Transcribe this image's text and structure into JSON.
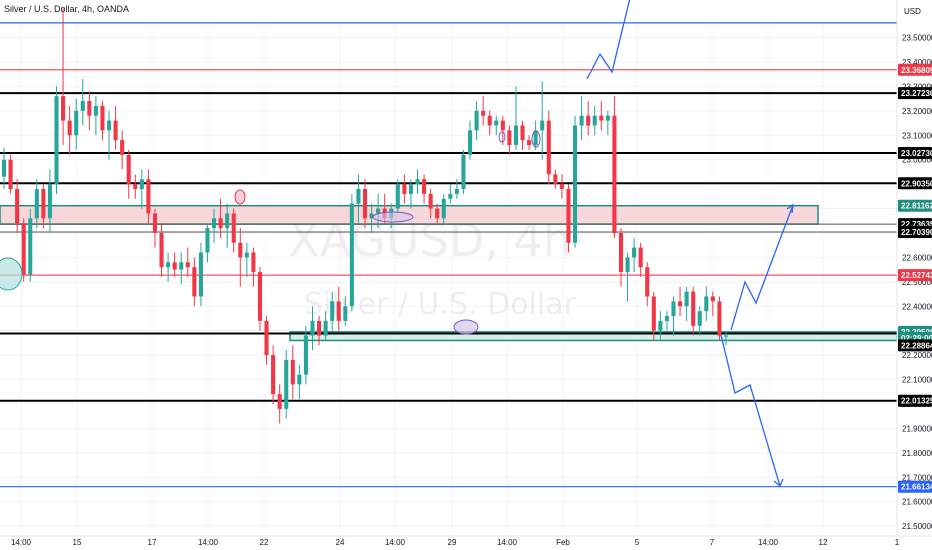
{
  "header": {
    "title": "Silver / U.S. Dollar, 4h, OANDA",
    "currency": "USD"
  },
  "watermark": {
    "symbol": "XAGUSD, 4h",
    "name": "Silver / U.S. Dollar"
  },
  "colors": {
    "up": "#26a69a",
    "down": "#f23645",
    "black": "#000000",
    "blue": "#2962ff",
    "red_line": "#f7525f",
    "zone_fill": "#f8d7da",
    "zone_border": "#1e8e7e",
    "support_fill": "#d6efe9",
    "grid": "#f0f3fa"
  },
  "chart_data": {
    "type": "candlestick",
    "title": "Silver / U.S. Dollar, 4h, OANDA",
    "ylim": [
      21.48,
      23.58
    ],
    "y_ticks": [
      "23.50000",
      "23.40000",
      "23.30000",
      "23.20000",
      "23.10000",
      "23.00000",
      "22.90000",
      "22.80000",
      "22.70000",
      "22.60000",
      "22.50000",
      "22.40000",
      "22.30000",
      "22.20000",
      "22.10000",
      "22.00000",
      "21.90000",
      "21.80000",
      "21.70000",
      "21.60000",
      "21.50000"
    ],
    "x_ticks": [
      "14:00",
      "15",
      "17",
      "14:00",
      "22",
      "24",
      "14:00",
      "29",
      "14:00",
      "Feb",
      "5",
      "7",
      "14:00",
      "12",
      "1"
    ],
    "levels": [
      {
        "value": 23.56,
        "kind": "blue"
      },
      {
        "value": 23.36809,
        "kind": "red"
      },
      {
        "value": 23.27236,
        "kind": "black"
      },
      {
        "value": 23.0273,
        "kind": "black"
      },
      {
        "value": 22.9035,
        "kind": "black"
      },
      {
        "value": 22.73635,
        "kind": "thin"
      },
      {
        "value": 22.7039,
        "kind": "thin"
      },
      {
        "value": 22.52743,
        "kind": "red"
      },
      {
        "value": 22.28864,
        "kind": "black"
      },
      {
        "value": 22.01325,
        "kind": "black"
      },
      {
        "value": 21.66134,
        "kind": "blue"
      }
    ],
    "zones": [
      {
        "from": 22.73635,
        "to": 22.81162,
        "kind": "resistance"
      },
      {
        "from": 22.26,
        "to": 22.295,
        "kind": "support"
      }
    ],
    "price_tags": [
      {
        "label": "23.36809",
        "value": 23.36809,
        "color": "red"
      },
      {
        "label": "23.27236",
        "value": 23.27236,
        "color": "black"
      },
      {
        "label": "23.02730",
        "value": 23.0273,
        "color": "black"
      },
      {
        "label": "22.90350",
        "value": 22.9035,
        "color": "black"
      },
      {
        "label": "22.81162",
        "value": 22.81162,
        "color": "teal"
      },
      {
        "label": "22.73635",
        "value": 22.73635,
        "color": "black"
      },
      {
        "label": "22.70390",
        "value": 22.7039,
        "color": "black"
      },
      {
        "label": "22.52743",
        "value": 22.52743,
        "color": "red"
      },
      {
        "label": "22.29500",
        "value": 22.295,
        "color": "teal"
      },
      {
        "label": "02:29:00",
        "value": 22.27,
        "color": "teal"
      },
      {
        "label": "22.28864",
        "value": 22.24,
        "color": "black"
      },
      {
        "label": "22.01325",
        "value": 22.01325,
        "color": "black"
      },
      {
        "label": "21.66134",
        "value": 21.66134,
        "color": "blue"
      }
    ],
    "candles": [
      [
        22.93,
        23.05,
        22.88,
        23.0
      ],
      [
        23.0,
        23.02,
        22.86,
        22.88
      ],
      [
        22.88,
        22.92,
        22.7,
        22.74
      ],
      [
        22.74,
        22.76,
        22.5,
        22.53
      ],
      [
        22.53,
        22.8,
        22.5,
        22.76
      ],
      [
        22.76,
        22.92,
        22.72,
        22.88
      ],
      [
        22.88,
        22.9,
        22.72,
        22.76
      ],
      [
        22.76,
        22.96,
        22.7,
        22.9
      ],
      [
        22.9,
        23.3,
        22.86,
        23.26
      ],
      [
        23.26,
        23.62,
        23.06,
        23.16
      ],
      [
        23.16,
        23.22,
        23.02,
        23.1
      ],
      [
        23.1,
        23.25,
        23.04,
        23.2
      ],
      [
        23.2,
        23.33,
        23.14,
        23.24
      ],
      [
        23.24,
        23.28,
        23.12,
        23.18
      ],
      [
        23.18,
        23.26,
        23.1,
        23.22
      ],
      [
        23.22,
        23.24,
        23.08,
        23.12
      ],
      [
        23.12,
        23.2,
        23.0,
        23.16
      ],
      [
        23.16,
        23.22,
        23.04,
        23.08
      ],
      [
        23.08,
        23.12,
        22.96,
        23.02
      ],
      [
        23.02,
        23.04,
        22.84,
        22.9
      ],
      [
        22.9,
        22.94,
        22.84,
        22.88
      ],
      [
        22.88,
        22.96,
        22.8,
        22.92
      ],
      [
        22.92,
        22.96,
        22.74,
        22.78
      ],
      [
        22.78,
        22.8,
        22.64,
        22.7
      ],
      [
        22.7,
        22.74,
        22.52,
        22.56
      ],
      [
        22.56,
        22.62,
        22.5,
        22.58
      ],
      [
        22.58,
        22.62,
        22.52,
        22.55
      ],
      [
        22.55,
        22.62,
        22.49,
        22.58
      ],
      [
        22.58,
        22.64,
        22.52,
        22.56
      ],
      [
        22.56,
        22.6,
        22.4,
        22.44
      ],
      [
        22.44,
        22.66,
        22.4,
        22.62
      ],
      [
        22.62,
        22.74,
        22.58,
        22.72
      ],
      [
        22.72,
        22.8,
        22.66,
        22.76
      ],
      [
        22.76,
        22.84,
        22.68,
        22.72
      ],
      [
        22.72,
        22.82,
        22.64,
        22.78
      ],
      [
        22.78,
        22.8,
        22.62,
        22.66
      ],
      [
        22.66,
        22.72,
        22.48,
        22.6
      ],
      [
        22.6,
        22.66,
        22.52,
        22.62
      ],
      [
        22.62,
        22.64,
        22.48,
        22.54
      ],
      [
        22.54,
        22.56,
        22.3,
        22.34
      ],
      [
        22.34,
        22.36,
        22.16,
        22.2
      ],
      [
        22.2,
        22.24,
        22.0,
        22.04
      ],
      [
        22.04,
        22.08,
        21.92,
        21.98
      ],
      [
        21.98,
        22.22,
        21.94,
        22.18
      ],
      [
        22.18,
        22.24,
        22.02,
        22.08
      ],
      [
        22.08,
        22.16,
        22.02,
        22.12
      ],
      [
        22.12,
        22.32,
        22.08,
        22.28
      ],
      [
        22.28,
        22.4,
        22.22,
        22.34
      ],
      [
        22.34,
        22.36,
        22.24,
        22.28
      ],
      [
        22.28,
        22.38,
        22.26,
        22.34
      ],
      [
        22.34,
        22.46,
        22.3,
        22.42
      ],
      [
        22.42,
        22.48,
        22.3,
        22.34
      ],
      [
        22.34,
        22.44,
        22.32,
        22.4
      ],
      [
        22.4,
        22.86,
        22.38,
        22.82
      ],
      [
        22.82,
        22.94,
        22.74,
        22.88
      ],
      [
        22.88,
        22.92,
        22.72,
        22.76
      ],
      [
        22.76,
        22.82,
        22.7,
        22.78
      ],
      [
        22.78,
        22.86,
        22.72,
        22.8
      ],
      [
        22.8,
        22.86,
        22.74,
        22.76
      ],
      [
        22.76,
        22.82,
        22.72,
        22.8
      ],
      [
        22.8,
        22.92,
        22.78,
        22.9
      ],
      [
        22.9,
        22.94,
        22.82,
        22.86
      ],
      [
        22.86,
        22.92,
        22.8,
        22.9
      ],
      [
        22.9,
        22.96,
        22.86,
        22.92
      ],
      [
        22.92,
        22.94,
        22.82,
        22.86
      ],
      [
        22.86,
        22.88,
        22.76,
        22.8
      ],
      [
        22.8,
        22.82,
        22.74,
        22.76
      ],
      [
        22.76,
        22.86,
        22.74,
        22.84
      ],
      [
        22.84,
        22.9,
        22.82,
        22.86
      ],
      [
        22.86,
        22.92,
        22.84,
        22.88
      ],
      [
        22.88,
        23.04,
        22.86,
        23.02
      ],
      [
        23.02,
        23.16,
        23.0,
        23.12
      ],
      [
        23.12,
        23.24,
        23.08,
        23.2
      ],
      [
        23.2,
        23.26,
        23.14,
        23.18
      ],
      [
        23.18,
        23.2,
        23.1,
        23.14
      ],
      [
        23.14,
        23.18,
        23.1,
        23.16
      ],
      [
        23.16,
        23.18,
        23.06,
        23.12
      ],
      [
        23.12,
        23.14,
        23.02,
        23.06
      ],
      [
        23.06,
        23.3,
        23.04,
        23.14
      ],
      [
        23.14,
        23.16,
        23.04,
        23.08
      ],
      [
        23.08,
        23.1,
        23.04,
        23.06
      ],
      [
        23.06,
        23.16,
        23.04,
        23.12
      ],
      [
        23.12,
        23.32,
        23.0,
        23.16
      ],
      [
        23.16,
        23.2,
        22.9,
        22.94
      ],
      [
        22.94,
        22.96,
        22.88,
        22.9
      ],
      [
        22.9,
        22.94,
        22.84,
        22.88
      ],
      [
        22.88,
        22.9,
        22.62,
        22.66
      ],
      [
        22.66,
        23.18,
        22.64,
        23.14
      ],
      [
        23.14,
        23.26,
        23.08,
        23.18
      ],
      [
        23.18,
        23.24,
        23.1,
        23.14
      ],
      [
        23.14,
        23.22,
        23.1,
        23.18
      ],
      [
        23.18,
        23.24,
        23.12,
        23.16
      ],
      [
        23.16,
        23.2,
        23.1,
        23.18
      ],
      [
        23.18,
        23.26,
        22.68,
        22.7
      ],
      [
        22.7,
        22.72,
        22.48,
        22.54
      ],
      [
        22.54,
        22.62,
        22.42,
        22.6
      ],
      [
        22.6,
        22.68,
        22.54,
        22.64
      ],
      [
        22.64,
        22.66,
        22.52,
        22.56
      ],
      [
        22.56,
        22.58,
        22.4,
        22.44
      ],
      [
        22.44,
        22.46,
        22.26,
        22.3
      ],
      [
        22.3,
        22.38,
        22.26,
        22.34
      ],
      [
        22.34,
        22.38,
        22.3,
        22.36
      ],
      [
        22.36,
        22.44,
        22.28,
        22.42
      ],
      [
        22.42,
        22.48,
        22.36,
        22.4
      ],
      [
        22.4,
        22.48,
        22.34,
        22.46
      ],
      [
        22.46,
        22.48,
        22.28,
        22.32
      ],
      [
        22.32,
        22.4,
        22.28,
        22.38
      ],
      [
        22.38,
        22.48,
        22.34,
        22.44
      ],
      [
        22.44,
        22.46,
        22.36,
        22.42
      ],
      [
        22.42,
        22.44,
        22.26,
        22.28
      ],
      [
        22.28,
        22.3,
        22.24,
        22.28
      ]
    ]
  }
}
